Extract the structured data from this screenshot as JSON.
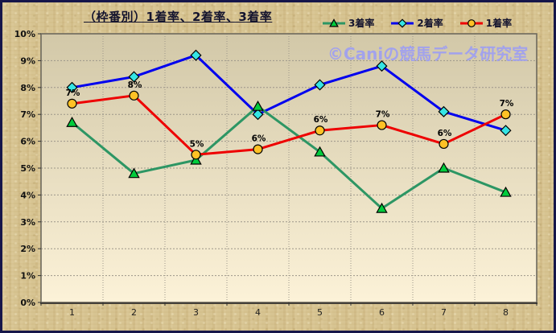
{
  "watermark": "©Caniの競馬データ研究室",
  "colors": {
    "background": "#D7C492",
    "frame_border": "#16164A",
    "plot_top": "#D2C8A8",
    "plot_bottom": "#FCF2D8",
    "gridline": "#9C968A",
    "watermark": "#A2A2EC",
    "title_text": "#14142E"
  },
  "chart_data": {
    "type": "line",
    "title": "（枠番別）1着率、2着率、3着率",
    "xlabel": "",
    "ylabel": "",
    "categories": [
      "1",
      "2",
      "3",
      "4",
      "5",
      "6",
      "7",
      "8"
    ],
    "ylim": [
      0,
      10
    ],
    "y_ticks": [
      "0%",
      "1%",
      "2%",
      "3%",
      "4%",
      "5%",
      "6%",
      "7%",
      "8%",
      "9%",
      "10%"
    ],
    "grid": true,
    "legend_position": "top-right",
    "series": [
      {
        "name": "3着率",
        "marker": "triangle",
        "line_color": "#2D9664",
        "marker_fill": "#00CC3C",
        "values": [
          6.7,
          4.8,
          5.3,
          7.3,
          5.6,
          3.5,
          5.0,
          4.1
        ]
      },
      {
        "name": "2着率",
        "marker": "diamond",
        "line_color": "#0000EE",
        "marker_fill": "#35E5E5",
        "values": [
          8.0,
          8.4,
          9.2,
          7.0,
          8.1,
          8.8,
          7.1,
          6.4
        ]
      },
      {
        "name": "1着率",
        "marker": "circle",
        "line_color": "#EE0000",
        "marker_fill": "#FFC125",
        "values": [
          7.4,
          7.7,
          5.5,
          5.7,
          6.4,
          6.6,
          5.9,
          7.0
        ],
        "point_labels": [
          "7%",
          "8%",
          "5%",
          "6%",
          "6%",
          "7%",
          "6%",
          "7%"
        ]
      }
    ],
    "draw_order": [
      "2着率",
      "3着率",
      "1着率"
    ]
  }
}
